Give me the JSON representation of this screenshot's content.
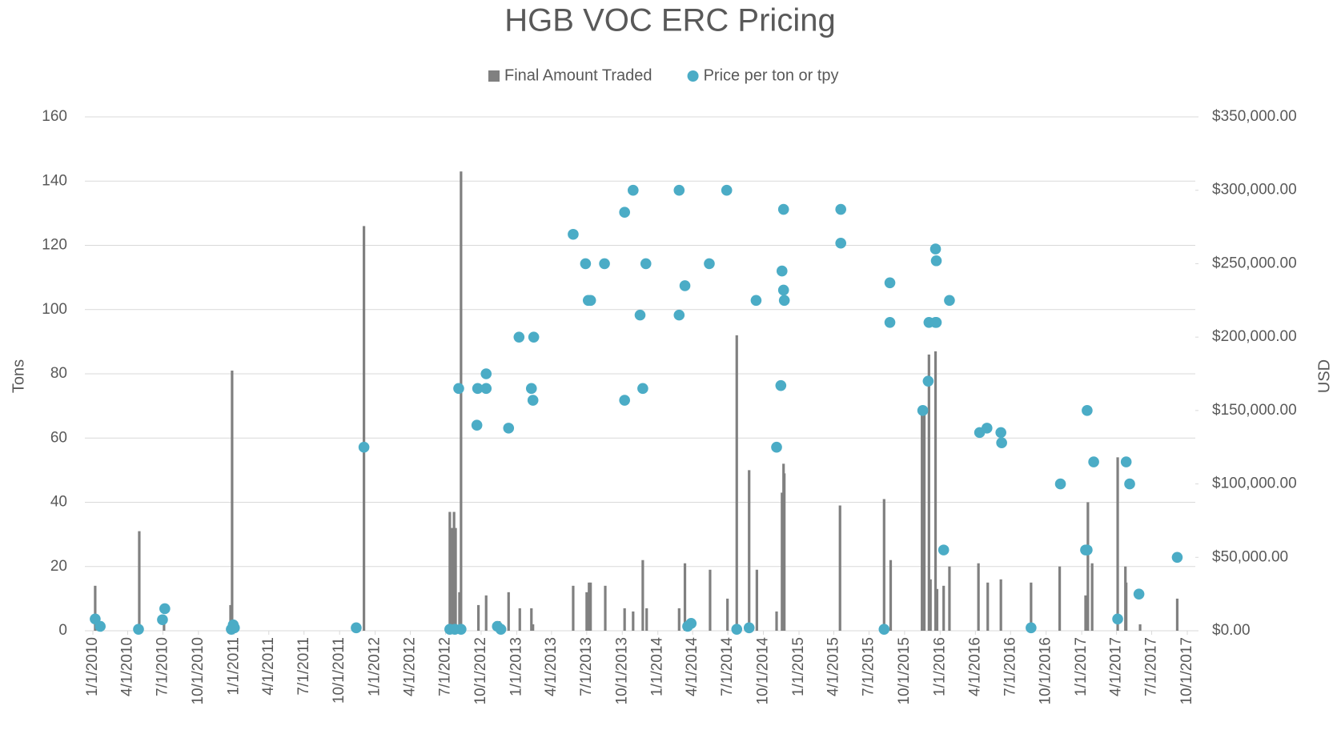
{
  "chart_data": {
    "type": "combo",
    "title": "HGB VOC ERC Pricing",
    "y_label": "Tons",
    "y2_label": "USD",
    "grid": true,
    "legend": "top",
    "xlim": [
      "1/1/2010",
      "10/1/2017"
    ],
    "xticks": [
      "1/1/2010",
      "4/1/2010",
      "7/1/2010",
      "10/1/2010",
      "1/1/2011",
      "4/1/2011",
      "7/1/2011",
      "10/1/2011",
      "1/1/2012",
      "4/1/2012",
      "7/1/2012",
      "10/1/2012",
      "1/1/2013",
      "4/1/2013",
      "7/1/2013",
      "10/1/2013",
      "1/1/2014",
      "4/1/2014",
      "7/1/2014",
      "10/1/2014",
      "1/1/2015",
      "4/1/2015",
      "7/1/2015",
      "10/1/2015",
      "1/1/2016",
      "4/1/2016",
      "7/1/2016",
      "10/1/2016",
      "1/1/2017",
      "4/1/2017",
      "7/1/2017",
      "10/1/2017"
    ],
    "ylim": [
      0,
      160
    ],
    "yticks": [
      0,
      20,
      40,
      60,
      80,
      100,
      120,
      140,
      160
    ],
    "y2lim": [
      0,
      350000
    ],
    "y2ticks": [
      {
        "value": 0,
        "label": "$0.00"
      },
      {
        "value": 50000,
        "label": "$50,000.00"
      },
      {
        "value": 100000,
        "label": "$100,000.00"
      },
      {
        "value": 150000,
        "label": "$150,000.00"
      },
      {
        "value": 200000,
        "label": "$200,000.00"
      },
      {
        "value": 250000,
        "label": "$250,000.00"
      },
      {
        "value": 300000,
        "label": "$300,000.00"
      },
      {
        "value": 350000,
        "label": "$350,000.00"
      }
    ],
    "series": [
      {
        "name": "Final Amount Traded",
        "type": "bar",
        "color": "#808080",
        "x": [
          "1/7/2010",
          "5/1/2010",
          "7/4/2010",
          "12/23/2010",
          "12/27/2010",
          "12/3/2011",
          "7/12/2012",
          "7/18/2012",
          "7/23/2012",
          "7/27/2012",
          "8/6/2012",
          "8/10/2012",
          "9/24/2012",
          "10/14/2012",
          "11/10/2012",
          "11/17/2012",
          "12/11/2012",
          "1/9/2013",
          "2/8/2013",
          "2/12/2013",
          "5/27/2013",
          "7/1/2013",
          "7/7/2013",
          "7/11/2013",
          "8/18/2013",
          "10/7/2013",
          "10/29/2013",
          "11/23/2013",
          "12/3/2013",
          "2/25/2014",
          "3/12/2014",
          "5/16/2014",
          "6/30/2014",
          "7/24/2014",
          "8/25/2014",
          "9/14/2014",
          "11/4/2014",
          "11/18/2014",
          "11/22/2014",
          "11/24/2014",
          "4/17/2015",
          "8/9/2015",
          "8/26/2015",
          "11/15/2015",
          "11/21/2015",
          "12/3/2015",
          "12/7/2015",
          "12/20/2015",
          "12/24/2015",
          "1/10/2016",
          "1/25/2016",
          "4/9/2016",
          "5/3/2016",
          "6/6/2016",
          "8/23/2016",
          "11/5/2016",
          "1/11/2017",
          "1/17/2017",
          "1/28/2017",
          "4/4/2017",
          "4/24/2017",
          "4/26/2017",
          "6/1/2017",
          "9/5/2017"
        ],
        "values": [
          14,
          31,
          2,
          8,
          81,
          126,
          37,
          32,
          37,
          32,
          12,
          143,
          8,
          11,
          3,
          3,
          12,
          7,
          7,
          2,
          14,
          12,
          15,
          15,
          14,
          7,
          6,
          22,
          7,
          7,
          21,
          19,
          10,
          92,
          50,
          19,
          6,
          43,
          52,
          49,
          39,
          41,
          22,
          70,
          69,
          86,
          16,
          87,
          13,
          14,
          20,
          21,
          15,
          16,
          15,
          20,
          11,
          40,
          21,
          54,
          20,
          15,
          2,
          10
        ]
      },
      {
        "name": "Price per ton or tpy",
        "type": "scatter",
        "axis": "y2",
        "color": "#4bacc6",
        "x": [
          "1/7/2010",
          "1/20/2010",
          "4/29/2010",
          "6/30/2010",
          "7/6/2010",
          "12/25/2010",
          "12/30/2010",
          "1/2/2011",
          "11/13/2011",
          "12/3/2011",
          "7/12/2012",
          "7/25/2012",
          "8/10/2012",
          "8/4/2012",
          "9/22/2012",
          "10/14/2012",
          "10/14/2012",
          "9/20/2012",
          "11/12/2012",
          "11/21/2012",
          "12/11/2012",
          "1/7/2013",
          "2/8/2013",
          "2/12/2013",
          "2/14/2013",
          "5/27/2013",
          "6/28/2013",
          "7/5/2013",
          "7/11/2013",
          "8/16/2013",
          "10/7/2013",
          "10/7/2013",
          "10/29/2013",
          "11/16/2013",
          "11/23/2013",
          "12/1/2013",
          "2/25/2014",
          "2/25/2014",
          "3/12/2014",
          "3/19/2014",
          "3/28/2014",
          "5/14/2014",
          "6/28/2014",
          "7/24/2014",
          "8/25/2014",
          "9/12/2014",
          "11/4/2014",
          "11/15/2014",
          "11/18/2014",
          "11/22/2014",
          "11/24/2014",
          "11/22/2014",
          "4/19/2015",
          "4/19/2015",
          "8/9/2015",
          "8/24/2015",
          "8/24/2015",
          "11/17/2015",
          "12/1/2015",
          "12/3/2015",
          "12/20/2015",
          "12/22/2015",
          "12/20/2015",
          "12/22/2015",
          "1/10/2016",
          "1/25/2016",
          "4/12/2016",
          "5/1/2016",
          "6/6/2016",
          "6/8/2016",
          "8/23/2016",
          "11/7/2016",
          "1/11/2017",
          "1/15/2017",
          "1/15/2017",
          "2/1/2017",
          "4/4/2017",
          "4/26/2017",
          "5/5/2017",
          "5/29/2017",
          "9/5/2017"
        ],
        "values": [
          8000,
          3000,
          1000,
          7500,
          15000,
          1000,
          4000,
          2000,
          2000,
          125000,
          1000,
          1000,
          1000,
          165000,
          165000,
          165000,
          175000,
          140000,
          3000,
          1000,
          138000,
          200000,
          165000,
          157000,
          200000,
          270000,
          250000,
          225000,
          225000,
          250000,
          285000,
          157000,
          300000,
          215000,
          165000,
          250000,
          300000,
          215000,
          235000,
          3000,
          5000,
          250000,
          300000,
          1000,
          2000,
          225000,
          125000,
          167000,
          245000,
          232000,
          225000,
          287000,
          287000,
          264000,
          1000,
          237000,
          210000,
          150000,
          170000,
          210000,
          210000,
          210000,
          260000,
          252000,
          55000,
          225000,
          135000,
          138000,
          135000,
          128000,
          2000,
          100000,
          55000,
          150000,
          55000,
          115000,
          8000,
          115000,
          100000,
          25000,
          50000
        ]
      }
    ]
  }
}
